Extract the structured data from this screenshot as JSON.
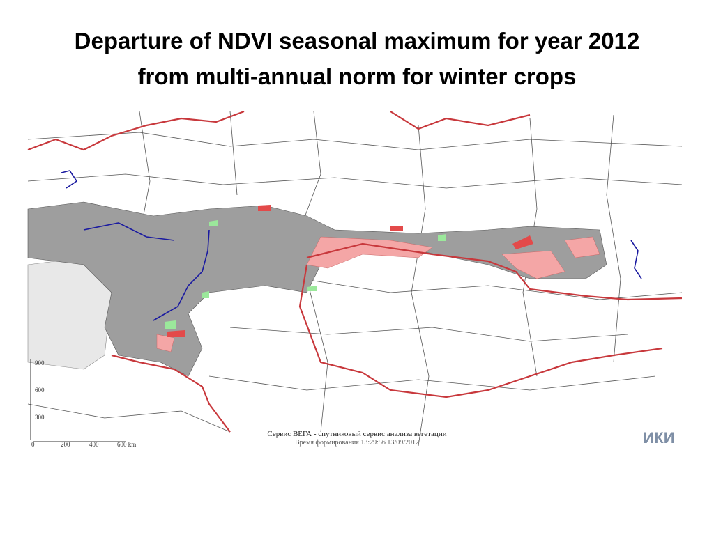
{
  "header": {
    "title_lines": [
      "Departure of NDVI seasonal maximum for year 2012",
      "from multi-annual norm for winter crops"
    ]
  },
  "map": {
    "vertical_scale": [
      "900",
      "600",
      "300"
    ],
    "scale_bar": [
      "0",
      "200",
      "400",
      "600 km"
    ],
    "caption": "Сервис ВЕГА - спутниковый сервис анализа вегетации",
    "timestamp": "Время формирования 13:29:56 13/09/2012",
    "logo": "ИКИ"
  }
}
